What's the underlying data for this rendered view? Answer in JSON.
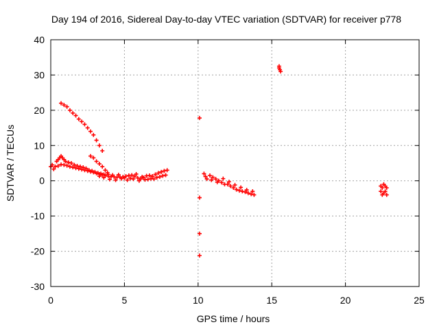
{
  "chart_data": {
    "type": "scatter",
    "title": "Day 194 of 2016, Sidereal Day-to-day VTEC variation (SDTVAR) for receiver p778",
    "xlabel": "GPS time / hours",
    "ylabel": "SDTVAR / TECUs",
    "xlim": [
      0,
      25
    ],
    "ylim": [
      -30,
      40
    ],
    "xticks": [
      0,
      5,
      10,
      15,
      20,
      25
    ],
    "yticks": [
      -30,
      -20,
      -10,
      0,
      10,
      20,
      30,
      40
    ],
    "xtick_labels": [
      "0",
      "5",
      "10",
      "15",
      "20",
      "25"
    ],
    "ytick_labels": [
      "-30",
      "-20",
      "-10",
      "0",
      "10",
      "20",
      "30",
      "40"
    ],
    "grid": true,
    "legend": "none",
    "marker": "plus",
    "color": "#ff0000",
    "series": [
      {
        "name": "SDTVAR",
        "points": [
          [
            0.0,
            4.0
          ],
          [
            0.1,
            4.5
          ],
          [
            0.2,
            3.3
          ],
          [
            0.3,
            4.0
          ],
          [
            0.4,
            5.5
          ],
          [
            0.5,
            6.0
          ],
          [
            0.6,
            6.5
          ],
          [
            0.7,
            7.0
          ],
          [
            0.8,
            6.5
          ],
          [
            0.9,
            6.0
          ],
          [
            1.0,
            5.5
          ],
          [
            1.2,
            5.2
          ],
          [
            1.4,
            5.0
          ],
          [
            1.6,
            4.5
          ],
          [
            1.8,
            4.2
          ],
          [
            2.0,
            4.0
          ],
          [
            2.2,
            3.8
          ],
          [
            2.4,
            3.5
          ],
          [
            2.6,
            3.0
          ],
          [
            2.8,
            2.8
          ],
          [
            3.0,
            2.5
          ],
          [
            3.2,
            2.2
          ],
          [
            3.4,
            2.0
          ],
          [
            3.6,
            1.8
          ],
          [
            0.5,
            4.2
          ],
          [
            0.7,
            4.6
          ],
          [
            0.9,
            4.5
          ],
          [
            1.1,
            4.3
          ],
          [
            1.3,
            4.0
          ],
          [
            1.5,
            3.8
          ],
          [
            1.7,
            3.6
          ],
          [
            1.9,
            3.4
          ],
          [
            2.1,
            3.2
          ],
          [
            2.3,
            3.0
          ],
          [
            2.5,
            2.8
          ],
          [
            2.7,
            2.6
          ],
          [
            2.9,
            2.4
          ],
          [
            3.1,
            2.1
          ],
          [
            3.3,
            1.9
          ],
          [
            3.5,
            1.7
          ],
          [
            3.7,
            1.5
          ],
          [
            3.9,
            1.3
          ],
          [
            4.1,
            1.2
          ],
          [
            4.3,
            1.1
          ],
          [
            4.5,
            1.0
          ],
          [
            4.7,
            1.0
          ],
          [
            4.9,
            1.1
          ],
          [
            5.1,
            1.3
          ],
          [
            5.3,
            1.5
          ],
          [
            5.5,
            1.6
          ],
          [
            5.7,
            1.3
          ],
          [
            5.9,
            0.8
          ],
          [
            6.1,
            0.5
          ],
          [
            6.3,
            0.9
          ],
          [
            6.5,
            1.4
          ],
          [
            6.7,
            1.5
          ],
          [
            6.9,
            1.3
          ],
          [
            7.1,
            1.8
          ],
          [
            7.3,
            2.2
          ],
          [
            7.5,
            2.5
          ],
          [
            7.7,
            2.8
          ],
          [
            7.9,
            3.0
          ],
          [
            4.0,
            0.4
          ],
          [
            4.4,
            0.2
          ],
          [
            4.8,
            0.6
          ],
          [
            5.2,
            0.2
          ],
          [
            5.6,
            0.5
          ],
          [
            6.0,
            0.0
          ],
          [
            6.4,
            0.3
          ],
          [
            6.8,
            0.6
          ],
          [
            7.2,
            0.9
          ],
          [
            7.6,
            1.4
          ],
          [
            3.3,
            1.3
          ],
          [
            3.6,
            0.9
          ],
          [
            3.9,
            1.8
          ],
          [
            4.2,
            1.6
          ],
          [
            4.6,
            1.7
          ],
          [
            5.0,
            0.8
          ],
          [
            5.4,
            0.7
          ],
          [
            5.8,
            1.9
          ],
          [
            6.2,
            1.1
          ],
          [
            6.6,
            0.4
          ],
          [
            7.0,
            0.5
          ],
          [
            7.4,
            1.1
          ],
          [
            7.8,
            1.6
          ],
          [
            0.7,
            22.0
          ],
          [
            0.9,
            21.5
          ],
          [
            1.1,
            21.0
          ],
          [
            1.3,
            20.0
          ],
          [
            1.5,
            19.2
          ],
          [
            1.7,
            18.5
          ],
          [
            1.9,
            17.5
          ],
          [
            2.1,
            16.8
          ],
          [
            2.3,
            16.0
          ],
          [
            2.5,
            15.0
          ],
          [
            2.7,
            14.0
          ],
          [
            2.9,
            13.0
          ],
          [
            3.1,
            11.5
          ],
          [
            3.3,
            10.0
          ],
          [
            3.5,
            8.5
          ],
          [
            2.7,
            7.0
          ],
          [
            2.9,
            6.5
          ],
          [
            3.1,
            5.5
          ],
          [
            3.3,
            4.8
          ],
          [
            3.5,
            4.0
          ],
          [
            3.7,
            3.0
          ],
          [
            3.85,
            2.3
          ],
          [
            10.1,
            17.8
          ],
          [
            10.1,
            -4.8
          ],
          [
            10.1,
            -15.0
          ],
          [
            10.1,
            -21.2
          ],
          [
            10.4,
            2.0
          ],
          [
            10.5,
            1.2
          ],
          [
            10.6,
            0.5
          ],
          [
            10.8,
            1.5
          ],
          [
            11.0,
            1.0
          ],
          [
            11.2,
            0.5
          ],
          [
            11.4,
            0.0
          ],
          [
            11.6,
            -0.5
          ],
          [
            11.8,
            -1.0
          ],
          [
            12.0,
            -1.0
          ],
          [
            12.2,
            -1.5
          ],
          [
            12.4,
            -2.0
          ],
          [
            12.6,
            -2.5
          ],
          [
            12.8,
            -2.8
          ],
          [
            13.0,
            -3.0
          ],
          [
            13.2,
            -3.2
          ],
          [
            13.4,
            -3.5
          ],
          [
            13.6,
            -3.8
          ],
          [
            13.8,
            -4.0
          ],
          [
            10.9,
            0.2
          ],
          [
            11.3,
            -0.4
          ],
          [
            11.7,
            0.6
          ],
          [
            12.1,
            -0.3
          ],
          [
            12.5,
            -1.2
          ],
          [
            12.9,
            -1.9
          ],
          [
            13.3,
            -2.6
          ],
          [
            13.7,
            -3.0
          ],
          [
            15.5,
            32.5
          ],
          [
            15.55,
            31.5
          ],
          [
            15.6,
            31.0
          ],
          [
            15.5,
            32.0
          ],
          [
            22.4,
            -1.5
          ],
          [
            22.5,
            -2.0
          ],
          [
            22.6,
            -1.0
          ],
          [
            22.7,
            -3.0
          ],
          [
            22.8,
            -4.0
          ],
          [
            22.4,
            -3.0
          ],
          [
            22.6,
            -3.5
          ],
          [
            22.8,
            -2.0
          ],
          [
            22.5,
            -4.0
          ],
          [
            22.7,
            -1.5
          ]
        ]
      }
    ]
  }
}
